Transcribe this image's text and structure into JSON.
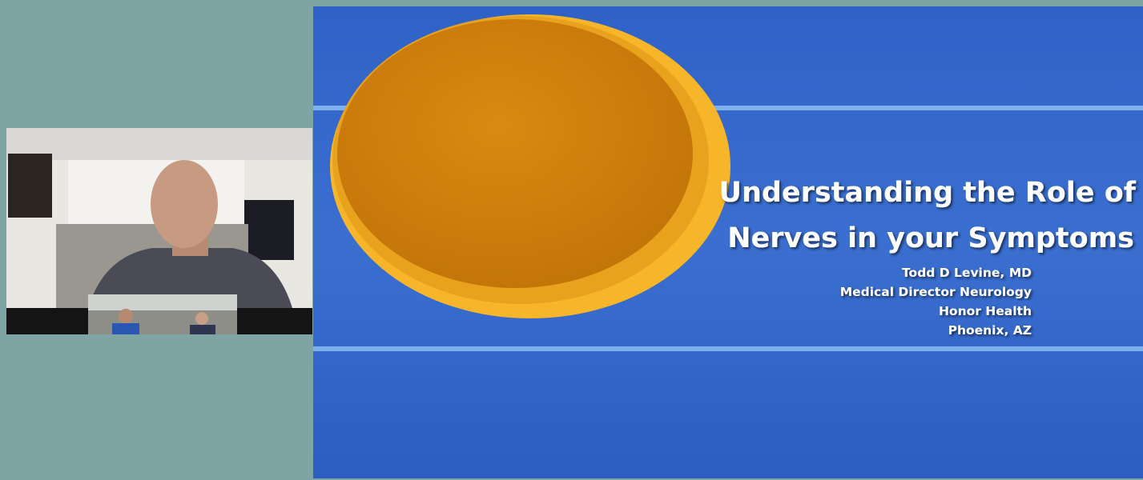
{
  "slide": {
    "title": [
      "Understanding the Role of",
      "Nerves in your Symptoms"
    ],
    "presenter": [
      "Todd D Levine, MD",
      "Medical Director Neurology",
      "Honor Health",
      "Phoenix, AZ"
    ]
  }
}
